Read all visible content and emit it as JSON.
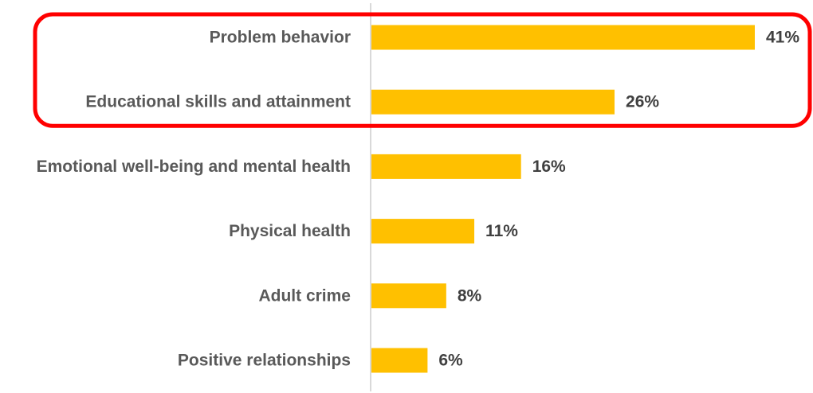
{
  "chart_data": {
    "type": "bar",
    "orientation": "horizontal",
    "categories": [
      "Problem behavior",
      "Educational skills and attainment",
      "Emotional well-being and mental health",
      "Physical health",
      "Adult crime",
      "Positive relationships"
    ],
    "values": [
      41,
      26,
      16,
      11,
      8,
      6
    ],
    "value_labels": [
      "41%",
      "26%",
      "16%",
      "11%",
      "8%",
      "6%"
    ],
    "unit": "%",
    "title": "",
    "xlabel": "",
    "ylabel": "",
    "xlim": [
      0,
      41
    ],
    "grid": false,
    "legend": "none",
    "highlight": {
      "categories": [
        "Problem behavior",
        "Educational skills and attainment"
      ],
      "color": "#ff0000"
    },
    "colors": {
      "bar": "#ffc000",
      "axis": "#d9d9d9",
      "category_text": "#595959",
      "value_text": "#404040"
    }
  }
}
